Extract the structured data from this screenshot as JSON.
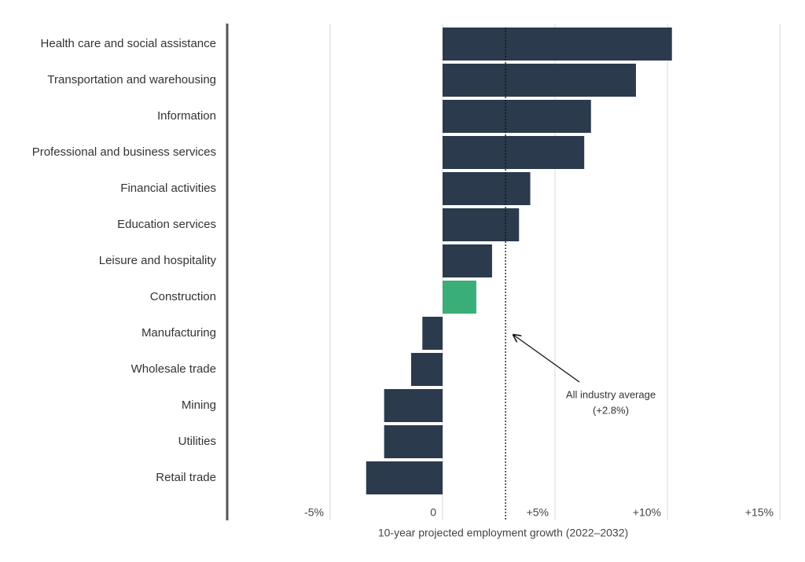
{
  "chart_data": {
    "type": "hbar",
    "x_label": "10-year projected employment growth (2022–2032)",
    "categories": [
      "Health care and social assistance",
      "Transportation and warehousing",
      "Information",
      "Professional and business services",
      "Financial activities",
      "Education services",
      "Leisure and hospitality",
      "Construction",
      "Manufacturing",
      "Wholesale trade",
      "Mining",
      "Utilities",
      "Retail trade"
    ],
    "values": [
      10.2,
      8.6,
      6.6,
      6.3,
      3.9,
      3.4,
      2.2,
      1.5,
      -0.9,
      -1.4,
      -2.6,
      -2.6,
      -3.4
    ],
    "colors": [
      "#2b3a4c",
      "#2b3a4c",
      "#2b3a4c",
      "#2b3a4c",
      "#2b3a4c",
      "#2b3a4c",
      "#2b3a4c",
      "#3aae78",
      "#2b3a4c",
      "#2b3a4c",
      "#2b3a4c",
      "#2b3a4c",
      "#2b3a4c"
    ],
    "xlim": [
      -9.6,
      15
    ],
    "xticks": [
      {
        "value": -5,
        "label": "-5%"
      },
      0,
      {
        "value": 5,
        "label": "+5%"
      },
      {
        "value": 10,
        "label": "+10%"
      },
      {
        "value": 15,
        "label": "+15%"
      }
    ],
    "grid": true,
    "reference_line": {
      "value": 2.8,
      "label_lines": [
        "All industry average",
        "(+2.8%)"
      ]
    }
  }
}
